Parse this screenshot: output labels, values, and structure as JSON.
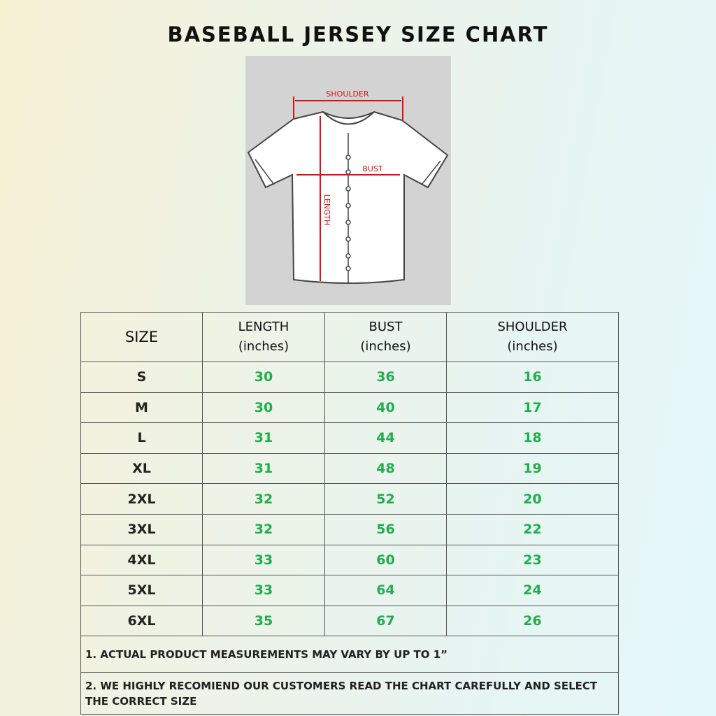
{
  "title": "BASEBALL JERSEY SIZE CHART",
  "diagram": {
    "shoulder": "SHOULDER",
    "bust": "BUST",
    "length": "LENGTH"
  },
  "table": {
    "header": [
      [
        "SIZE"
      ],
      [
        "LENGTH",
        "(inches)"
      ],
      [
        "BUST",
        "(inches)"
      ],
      [
        "SHOULDER",
        "(inches)"
      ]
    ],
    "rows": [
      [
        "S",
        30,
        36,
        16
      ],
      [
        "M",
        30,
        40,
        17
      ],
      [
        "L",
        31,
        44,
        18
      ],
      [
        "XL",
        31,
        48,
        19
      ],
      [
        "2XL",
        32,
        52,
        20
      ],
      [
        "3XL",
        32,
        56,
        22
      ],
      [
        "4XL",
        33,
        60,
        23
      ],
      [
        "5XL",
        33,
        64,
        24
      ],
      [
        "6XL",
        35,
        67,
        26
      ]
    ],
    "notes": [
      "1. ACTUAL PRODUCT MEASUREMENTS MAY VARY BY UP TO 1”",
      "2. WE HIGHLY RECOMIEND OUR CUSTOMERS READ THE CHART CAREFULLY AND SELECT THE CORRECT SIZE"
    ]
  }
}
